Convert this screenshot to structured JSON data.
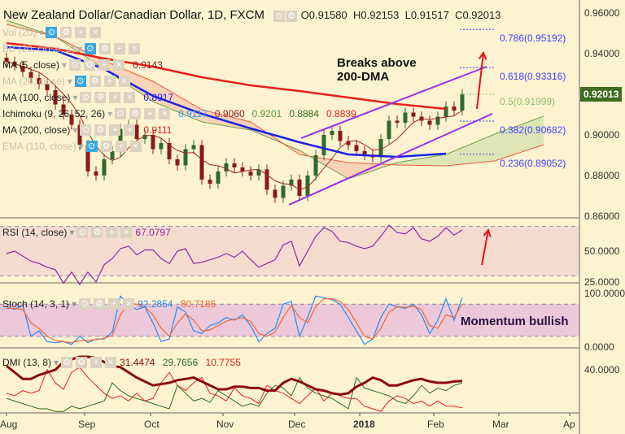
{
  "header": {
    "title": "New Zealand Dollar/Canadian Dollar, 1D, FXCM",
    "ohlc": {
      "open": "O0.91580",
      "high": "H0.92153",
      "low": "L0.91517",
      "close": "C0.92013"
    }
  },
  "legend": [
    {
      "label": "Vol (20)",
      "faded": true,
      "values": []
    },
    {
      "label": "BB (20, close, 2)",
      "faded": true,
      "values": []
    },
    {
      "label": "MA (5, close)",
      "faded": false,
      "values": [
        {
          "v": "0.9143",
          "color": "#8b1a1a"
        }
      ]
    },
    {
      "label": "MA (20, close)",
      "faded": true,
      "values": []
    },
    {
      "label": "MA (100, close)",
      "faded": false,
      "values": [
        {
          "v": "0.8917",
          "color": "#1a1aff"
        }
      ]
    },
    {
      "label": "Ichimoku (9, 26, 52, 26)",
      "faded": false,
      "values": [
        {
          "v": "0.9117",
          "color": "#2a9df4"
        },
        {
          "v": "0.9060",
          "color": "#8b1a1a"
        },
        {
          "v": "0.9201",
          "color": "#5a9a3a"
        },
        {
          "v": "0.8884",
          "color": "#2e6b1a"
        },
        {
          "v": "0.8839",
          "color": "#e0201a"
        }
      ]
    },
    {
      "label": "MA (200, close)",
      "faded": false,
      "values": [
        {
          "v": "0.9111",
          "color": "#e0201a"
        }
      ]
    },
    {
      "label": "EMA (110, close)",
      "faded": true,
      "values": []
    }
  ],
  "annotations": {
    "breaks_line1": "Breaks above",
    "breaks_line2": "200-DMA",
    "momentum": "Momentum bullish"
  },
  "fib_levels": [
    {
      "label": "0.786(0.95192)",
      "price": 0.95192,
      "color": "#4040ff"
    },
    {
      "label": "0.618(0.93316)",
      "price": 0.93316,
      "color": "#4040ff"
    },
    {
      "label": "0.5(0.91999)",
      "price": 0.91999,
      "color": "#8fbf6a"
    },
    {
      "label": "0.382(0.90682)",
      "price": 0.90682,
      "color": "#4040ff"
    },
    {
      "label": "0.236(0.89052)",
      "price": 0.89052,
      "color": "#4040ff"
    }
  ],
  "price_axis": {
    "labels": [
      "0.96000",
      "0.94000",
      "0.92000",
      "0.90000",
      "0.88000",
      "0.86000"
    ],
    "current": "0.92013",
    "current_color": "#3d6e1f"
  },
  "rsi": {
    "label": "RSI (14, close)",
    "value": "67.0797",
    "axis": [
      "50.0000",
      "25.0000"
    ]
  },
  "stoch": {
    "label": "Stoch (14, 3, 1)",
    "k_value": "92.2854",
    "d_value": "80.7186",
    "axis": [
      "100.0000",
      "0.0000"
    ]
  },
  "dmi": {
    "label": "DMI (13, 8)",
    "adx_value": "31.4474",
    "plus_value": "29.7656",
    "minus_value": "10.7755",
    "axis": [
      "40.0000"
    ]
  },
  "time_axis": [
    "Aug",
    "Sep",
    "Oct",
    "Nov",
    "Dec",
    "2018",
    "Feb",
    "Mar",
    "Ap"
  ],
  "colors": {
    "background": "#fdf3d1",
    "bull": "#2f6b2a",
    "bear": "#8b1a1a",
    "ma200": "#e8201a",
    "ma100": "#1a22e0",
    "channel": "#9b30e8",
    "arrow": "#e8101a",
    "rsi": "#8a2aa8",
    "stoch_k": "#2a8cf0",
    "stoch_d": "#f06a3a",
    "adx": "#8b0d0d",
    "plus_di": "#2e6b1a",
    "minus_di": "#e8201a"
  },
  "chart_data": {
    "type": "candlestick",
    "symbol": "NZDCAD",
    "timeframe": "1D",
    "x_range": [
      "Aug 2017",
      "Apr 2018"
    ],
    "ylim": [
      0.86,
      0.96
    ],
    "close": [
      0.936,
      0.934,
      0.931,
      0.928,
      0.925,
      0.922,
      0.915,
      0.91,
      0.905,
      0.895,
      0.882,
      0.88,
      0.888,
      0.892,
      0.903,
      0.905,
      0.898,
      0.9,
      0.893,
      0.896,
      0.888,
      0.885,
      0.893,
      0.895,
      0.878,
      0.876,
      0.882,
      0.886,
      0.884,
      0.882,
      0.88,
      0.883,
      0.873,
      0.869,
      0.875,
      0.878,
      0.87,
      0.88,
      0.89,
      0.9,
      0.902,
      0.897,
      0.895,
      0.892,
      0.89,
      0.889,
      0.898,
      0.907,
      0.906,
      0.911,
      0.909,
      0.907,
      0.905,
      0.909,
      0.914,
      0.912,
      0.92013
    ],
    "ma200": [
      0.9452,
      0.9424,
      0.9376,
      0.9336,
      0.9284,
      0.9244,
      0.9216,
      0.9184,
      0.9152,
      0.9128
    ],
    "ma100": [
      0.9432,
      0.9416,
      0.9324,
      0.9192,
      0.9104,
      0.9032,
      0.8964,
      0.8904,
      0.8892,
      0.8908
    ],
    "ichimoku_span_a": [
      0.9564,
      0.9484,
      0.9324,
      0.9164,
      0.9064,
      0.9024,
      0.8924,
      0.8784,
      0.8864,
      0.8904,
      0.9004,
      0.9092
    ],
    "ichimoku_span_b": [
      0.9544,
      0.9484,
      0.9364,
      0.9264,
      0.9124,
      0.9064,
      0.8904,
      0.8864,
      0.8852,
      0.8848,
      0.8872,
      0.8952
    ],
    "channel_upper": [
      [
        36.2,
        0.8984
      ],
      [
        59,
        0.9336
      ]
    ],
    "channel_lower": [
      [
        34.7,
        0.8656
      ],
      [
        59.7,
        0.9104
      ]
    ],
    "rsi": [
      48,
      50,
      46,
      42,
      40,
      37,
      35,
      24,
      33,
      23,
      33,
      25,
      39,
      44,
      52,
      54,
      47,
      51,
      51,
      44,
      40,
      50,
      52,
      40,
      41,
      43,
      45,
      48,
      45,
      50,
      43,
      37,
      40,
      43,
      55,
      58,
      38,
      50,
      62,
      69,
      66,
      58,
      57,
      54,
      52,
      54,
      62,
      71,
      65,
      64,
      69,
      60,
      58,
      62,
      69,
      63,
      67.08
    ],
    "rsi_bands": [
      70,
      30
    ],
    "stoch_k": [
      75,
      70,
      78,
      20,
      30,
      10,
      8,
      10,
      5,
      20,
      8,
      15,
      15,
      28,
      95,
      80,
      70,
      75,
      45,
      10,
      15,
      75,
      65,
      30,
      25,
      40,
      45,
      55,
      50,
      60,
      40,
      10,
      25,
      35,
      80,
      85,
      20,
      55,
      95,
      92,
      88,
      80,
      55,
      30,
      5,
      15,
      55,
      80,
      75,
      72,
      80,
      60,
      25,
      50,
      90,
      50,
      92.29
    ],
    "stoch_d": [
      72,
      72,
      70,
      45,
      35,
      20,
      12,
      10,
      8,
      12,
      12,
      14,
      16,
      22,
      60,
      82,
      80,
      75,
      60,
      35,
      20,
      45,
      62,
      50,
      30,
      32,
      40,
      48,
      52,
      55,
      48,
      25,
      20,
      28,
      55,
      78,
      55,
      45,
      75,
      90,
      90,
      85,
      70,
      45,
      20,
      15,
      35,
      65,
      75,
      74,
      76,
      70,
      40,
      35,
      60,
      55,
      80.72
    ],
    "stoch_bands": [
      80,
      20
    ],
    "adx": [
      43,
      38,
      33,
      33,
      36,
      38,
      40,
      46,
      48,
      50,
      50,
      49,
      46,
      43,
      42,
      38,
      34,
      31,
      28,
      29,
      30,
      32,
      33,
      34,
      31,
      28,
      25,
      25,
      27,
      27,
      26,
      26,
      24,
      24,
      30,
      33,
      31,
      28,
      25,
      24,
      22,
      21,
      22,
      27,
      30,
      34,
      32,
      28,
      28,
      30,
      32,
      33,
      31,
      30,
      30,
      31,
      31.45
    ],
    "plus_di": [
      18,
      16,
      14,
      12,
      10,
      10,
      8,
      8,
      12,
      10,
      12,
      14,
      16,
      30,
      24,
      20,
      18,
      16,
      14,
      12,
      10,
      28,
      22,
      16,
      18,
      15,
      24,
      20,
      16,
      12,
      14,
      12,
      22,
      28,
      26,
      20,
      34,
      26,
      22,
      20,
      18,
      14,
      10,
      34,
      26,
      24,
      22,
      20,
      16,
      14,
      20,
      28,
      22,
      26,
      24,
      28,
      29.77
    ],
    "minus_di": [
      22,
      20,
      24,
      22,
      24,
      40,
      30,
      25,
      38,
      42,
      34,
      28,
      22,
      18,
      20,
      16,
      22,
      16,
      18,
      30,
      38,
      28,
      24,
      30,
      34,
      22,
      20,
      16,
      26,
      20,
      18,
      14,
      28,
      24,
      22,
      18,
      14,
      20,
      26,
      16,
      22,
      20,
      18,
      18,
      12,
      10,
      8,
      16,
      20,
      18,
      14,
      16,
      12,
      16,
      12,
      12,
      10.78
    ]
  }
}
